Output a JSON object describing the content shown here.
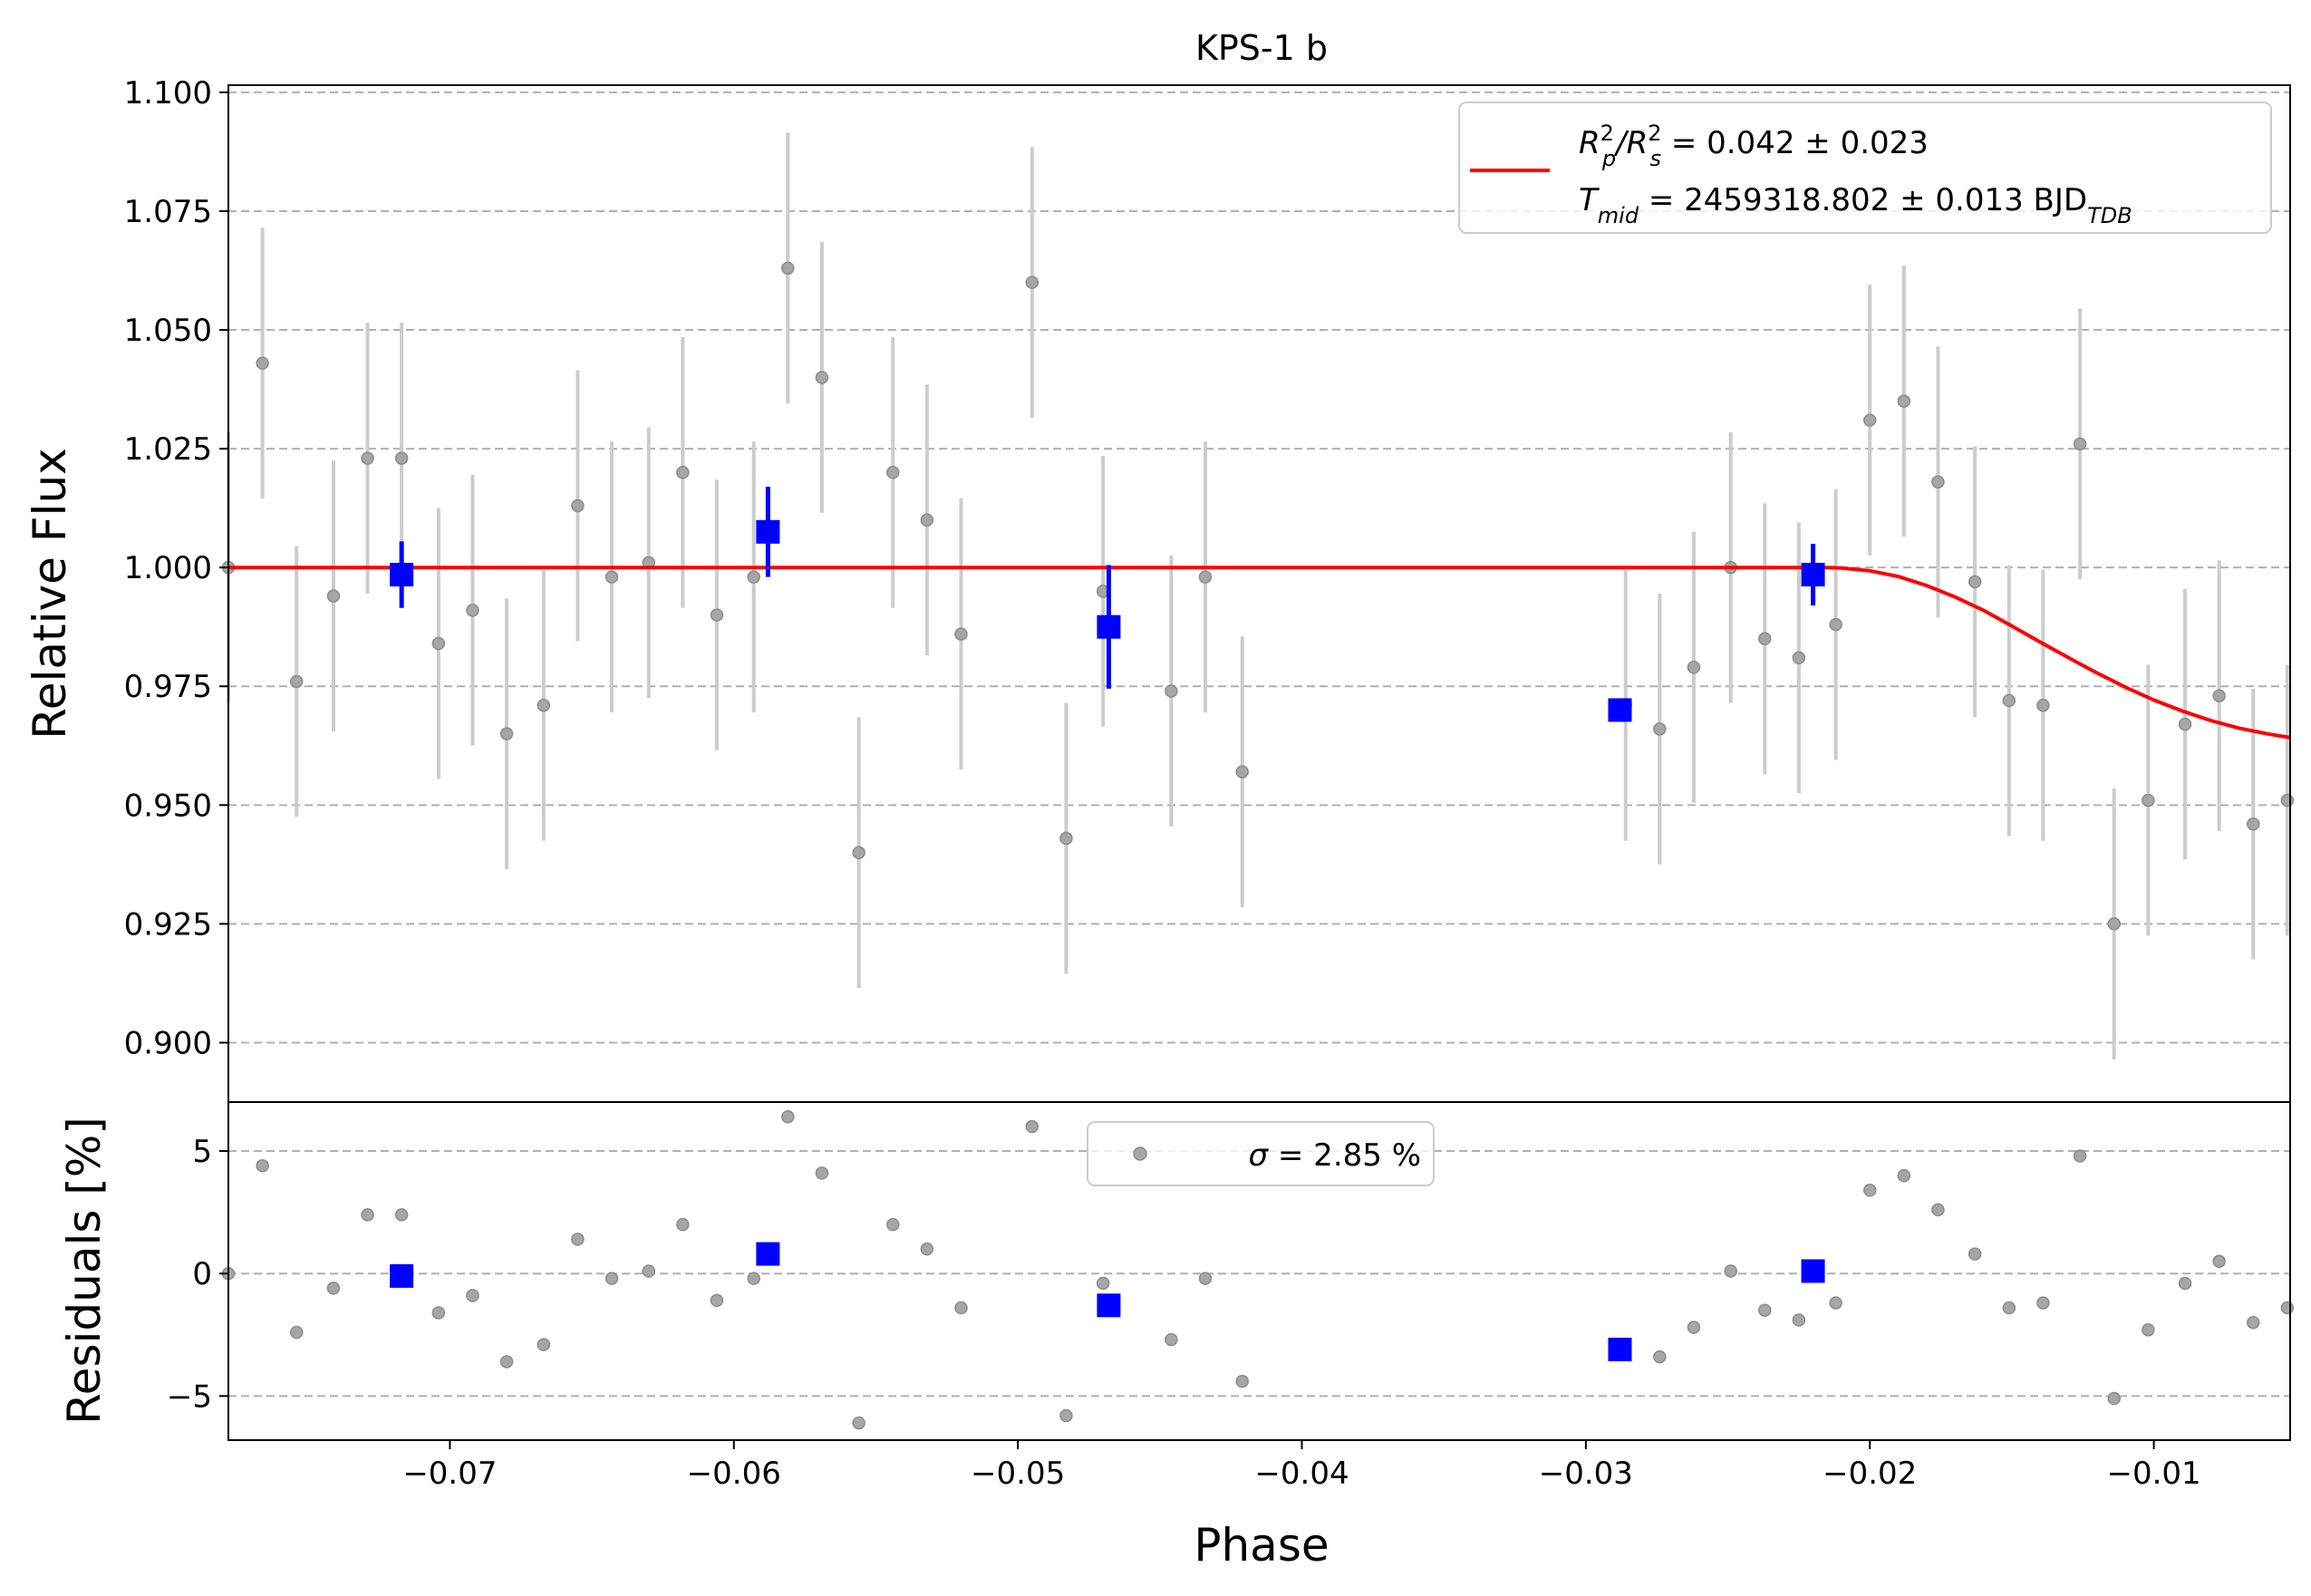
{
  "chart_data": [
    {
      "type": "scatter",
      "panel": "top",
      "title": "KPS-1 b",
      "xlabel": "",
      "ylabel": "Relative Flux",
      "xlim": [
        -0.0778,
        -0.0052
      ],
      "ylim": [
        0.8875,
        1.1015
      ],
      "yticks": [
        0.9,
        0.925,
        0.95,
        0.975,
        1.0,
        1.025,
        1.05,
        1.075,
        1.1
      ],
      "ytick_labels": [
        "0.900",
        "0.925",
        "0.950",
        "0.975",
        "1.000",
        "1.025",
        "1.050",
        "1.075",
        "1.100"
      ],
      "grid": "y dashed",
      "legend_placement": "top-right",
      "legend": {
        "line1_pre": "R",
        "line1_sup1": "2",
        "line1_sub1": "p",
        "line1_mid": "/R",
        "line1_sup2": "2",
        "line1_sub2": "s",
        "line1_post": " = 0.042 ± 0.023",
        "line2_pre": "T",
        "line2_sub": "mid",
        "line2_post": " = 2459318.802 ± 0.013 BJD",
        "line2_sub2": "TDB"
      },
      "series": [
        {
          "kind": "raw-points",
          "color": "#808080",
          "x": [
            -0.0778,
            -0.0766,
            -0.0754,
            -0.0741,
            -0.0729,
            -0.0717,
            -0.0704,
            -0.0692,
            -0.068,
            -0.0667,
            -0.0655,
            -0.0643,
            -0.063,
            -0.0618,
            -0.0606,
            -0.0593,
            -0.0581,
            -0.0569,
            -0.0556,
            -0.0544,
            -0.0532,
            -0.052,
            -0.0495,
            -0.0483,
            -0.047,
            -0.0446,
            -0.0434,
            -0.0421,
            -0.0286,
            -0.0274,
            -0.0262,
            -0.0249,
            -0.0237,
            -0.0225,
            -0.0212,
            -0.02,
            -0.0188,
            -0.0176,
            -0.0163,
            -0.0151,
            -0.0139,
            -0.0126,
            -0.0114,
            -0.0102,
            -0.0089,
            -0.0077,
            -0.0065,
            -0.0053
          ],
          "y": [
            1.0,
            1.043,
            0.976,
            0.994,
            1.023,
            1.023,
            0.984,
            0.991,
            0.965,
            0.971,
            1.013,
            0.998,
            1.001,
            1.02,
            0.99,
            0.998,
            1.063,
            1.04,
            0.94,
            1.02,
            1.01,
            0.986,
            1.06,
            0.943,
            0.995,
            0.974,
            0.998,
            0.957,
            0.971,
            0.966,
            0.979,
            1.0,
            0.985,
            0.981,
            0.988,
            1.031,
            1.035,
            1.018,
            0.997,
            0.972,
            0.971,
            1.026,
            0.925,
            0.951,
            0.967,
            0.973,
            0.946,
            0.951
          ],
          "yerr": 0.0285,
          "errbar_color": "#cccccc"
        },
        {
          "kind": "binned",
          "color": "#0000ff",
          "x": [
            -0.0717,
            -0.0588,
            -0.0468,
            -0.0288,
            -0.022
          ],
          "y": [
            0.9985,
            1.0075,
            0.9875,
            0.97,
            0.9985
          ],
          "yerr": [
            0.007,
            0.0095,
            0.013,
            0.0,
            0.0065
          ]
        },
        {
          "kind": "model",
          "color": "#ff0000",
          "x": [
            -0.0778,
            -0.0215,
            -0.021,
            -0.02,
            -0.019,
            -0.018,
            -0.017,
            -0.016,
            -0.015,
            -0.014,
            -0.013,
            -0.012,
            -0.011,
            -0.01,
            -0.009,
            -0.008,
            -0.007,
            -0.006,
            -0.0052
          ],
          "y": [
            1.0,
            1.0,
            0.9999,
            0.9993,
            0.9981,
            0.9962,
            0.9938,
            0.991,
            0.9877,
            0.9843,
            0.981,
            0.9778,
            0.9748,
            0.9721,
            0.9698,
            0.9678,
            0.9662,
            0.965,
            0.9642
          ]
        }
      ]
    },
    {
      "type": "scatter",
      "panel": "bottom",
      "xlabel": "Phase",
      "ylabel": "Residuals [%]",
      "xlim": [
        -0.0778,
        -0.0052
      ],
      "ylim": [
        -6.8,
        7.0
      ],
      "yticks": [
        -5,
        0,
        5
      ],
      "ytick_labels": [
        "−5",
        "0",
        "5"
      ],
      "xticks": [
        -0.07,
        -0.06,
        -0.05,
        -0.04,
        -0.03,
        -0.02,
        -0.01
      ],
      "xtick_labels": [
        "−0.07",
        "−0.06",
        "−0.05",
        "−0.04",
        "−0.03",
        "−0.02",
        "−0.01"
      ],
      "grid": "y dashed",
      "legend_placement": "top-center",
      "legend": {
        "sigma_symbol": "σ",
        "label_rest": " = 2.85 %"
      },
      "series": [
        {
          "kind": "raw-residuals",
          "color": "#808080",
          "x": [
            -0.0778,
            -0.0766,
            -0.0754,
            -0.0741,
            -0.0729,
            -0.0717,
            -0.0704,
            -0.0692,
            -0.068,
            -0.0667,
            -0.0655,
            -0.0643,
            -0.063,
            -0.0618,
            -0.0606,
            -0.0593,
            -0.0581,
            -0.0569,
            -0.0556,
            -0.0544,
            -0.0532,
            -0.052,
            -0.0495,
            -0.0483,
            -0.047,
            -0.0446,
            -0.0434,
            -0.0421,
            -0.0274,
            -0.0262,
            -0.0249,
            -0.0237,
            -0.0225,
            -0.0212,
            -0.02,
            -0.0188,
            -0.0176,
            -0.0163,
            -0.0151,
            -0.0139,
            -0.0126,
            -0.0114,
            -0.0102,
            -0.0089,
            -0.0077,
            -0.0065,
            -0.0053
          ],
          "y": [
            0.0,
            4.4,
            -2.4,
            -0.6,
            2.4,
            2.4,
            -1.6,
            -0.9,
            -3.6,
            -2.9,
            1.4,
            -0.2,
            0.1,
            2.0,
            -1.1,
            -0.2,
            6.4,
            4.1,
            -6.1,
            2.0,
            1.0,
            -1.4,
            6.0,
            -5.8,
            -0.4,
            -2.7,
            -0.2,
            -4.4,
            -3.4,
            -2.2,
            0.1,
            -1.5,
            -1.9,
            -1.2,
            3.4,
            4.0,
            2.6,
            0.8,
            -1.4,
            -1.2,
            4.8,
            -5.1,
            -2.3,
            -0.4,
            0.5,
            -2.0,
            -1.4
          ]
        },
        {
          "kind": "binned-residuals",
          "color": "#0000ff",
          "x": [
            -0.0717,
            -0.0588,
            -0.0468,
            -0.0288,
            -0.022
          ],
          "y": [
            -0.1,
            0.8,
            -1.3,
            -3.1,
            0.1
          ]
        }
      ]
    }
  ]
}
